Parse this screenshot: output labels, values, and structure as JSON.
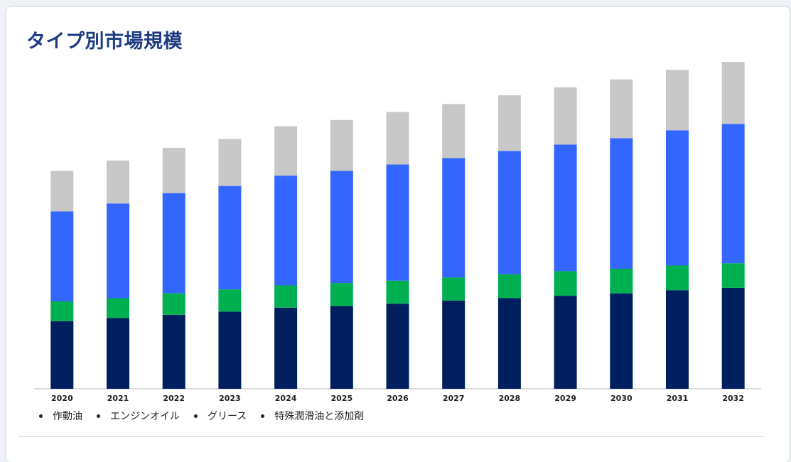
{
  "chart_data": {
    "type": "bar",
    "stacked": true,
    "title": "タイプ別市場規模",
    "categories": [
      "2020",
      "2021",
      "2022",
      "2023",
      "2024",
      "2025",
      "2026",
      "2027",
      "2028",
      "2029",
      "2030",
      "2031",
      "2032"
    ],
    "series": [
      {
        "name": "作動油",
        "color": "#001f5f",
        "values": [
          85,
          89,
          93,
          97,
          102,
          104,
          107,
          111,
          114,
          117,
          120,
          124,
          127
        ]
      },
      {
        "name": "エンジンオイル",
        "color": "#00b050",
        "values": [
          25,
          25,
          27,
          28,
          28,
          29,
          29,
          29,
          30,
          31,
          31,
          31,
          31
        ]
      },
      {
        "name": "グリース",
        "color": "#3366ff",
        "values": [
          113,
          119,
          126,
          130,
          138,
          141,
          146,
          150,
          155,
          159,
          164,
          170,
          175
        ]
      },
      {
        "name": "特殊潤滑油と添加剤",
        "color": "#c8c8c8",
        "values": [
          51,
          54,
          57,
          59,
          62,
          64,
          66,
          68,
          70,
          72,
          74,
          76,
          78
        ]
      }
    ],
    "ylim": [
      0,
      420
    ],
    "grid": false,
    "legend_position": "bottom-left"
  }
}
